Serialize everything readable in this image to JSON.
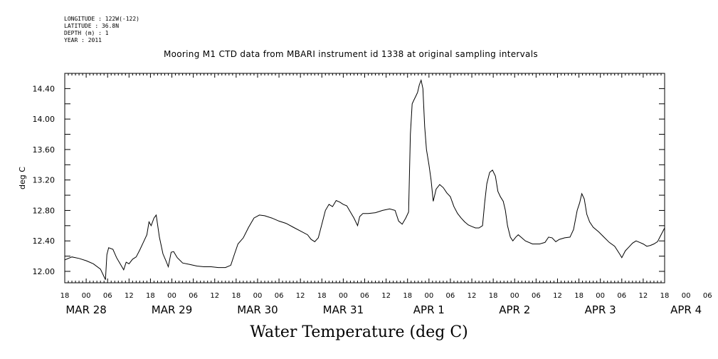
{
  "header": {
    "longitude": "LONGITUDE : 122W(-122)",
    "latitude": "LATITUDE : 36.8N",
    "depth": "DEPTH (m) : 1",
    "year": "YEAR : 2011"
  },
  "chart_data": {
    "type": "line",
    "title": "Mooring M1 CTD data from MBARI instrument id 1338 at original sampling intervals",
    "xlabel": "Water Temperature (deg C)",
    "ylabel": "deg C",
    "ylim": [
      11.85,
      14.6
    ],
    "yticks": [
      "12.00",
      "12.40",
      "12.80",
      "13.20",
      "13.60",
      "14.00",
      "14.40"
    ],
    "xlim": [
      0,
      168
    ],
    "x_unit": "hours since 2011-03-27 18:00",
    "x_hour_ticks": [
      "18",
      "00",
      "06",
      "12",
      "18",
      "00",
      "06",
      "12",
      "18",
      "00",
      "06",
      "12",
      "18",
      "00",
      "06",
      "12",
      "18",
      "00",
      "06",
      "12",
      "18",
      "00",
      "06",
      "12",
      "18",
      "00",
      "06",
      "12",
      "18",
      "00",
      "06",
      "12",
      "18"
    ],
    "x_day_labels": [
      "MAR 28",
      "MAR 29",
      "MAR 30",
      "MAR 31",
      "APR  1",
      "APR  2",
      "APR  3",
      "APR  4"
    ],
    "grid": false,
    "series": [
      {
        "name": "",
        "color": "#000000",
        "points": [
          [
            0,
            12.15
          ],
          [
            2,
            12.19
          ],
          [
            4,
            12.17
          ],
          [
            6,
            12.14
          ],
          [
            8,
            12.1
          ],
          [
            10,
            12.03
          ],
          [
            11,
            11.93
          ],
          [
            11.4,
            11.89
          ],
          [
            11.8,
            12.22
          ],
          [
            12.3,
            12.31
          ],
          [
            13.5,
            12.29
          ],
          [
            14.5,
            12.18
          ],
          [
            15.5,
            12.1
          ],
          [
            16.5,
            12.02
          ],
          [
            17.2,
            12.12
          ],
          [
            18,
            12.1
          ],
          [
            19,
            12.16
          ],
          [
            20,
            12.19
          ],
          [
            21,
            12.28
          ],
          [
            22,
            12.38
          ],
          [
            23,
            12.48
          ],
          [
            23.6,
            12.65
          ],
          [
            24.2,
            12.6
          ],
          [
            25,
            12.7
          ],
          [
            25.6,
            12.74
          ],
          [
            26.5,
            12.45
          ],
          [
            27.5,
            12.23
          ],
          [
            28.5,
            12.12
          ],
          [
            29,
            12.06
          ],
          [
            29.8,
            12.25
          ],
          [
            30.5,
            12.26
          ],
          [
            31.5,
            12.18
          ],
          [
            33,
            12.11
          ],
          [
            35,
            12.09
          ],
          [
            37,
            12.07
          ],
          [
            39,
            12.06
          ],
          [
            41,
            12.06
          ],
          [
            43,
            12.05
          ],
          [
            45,
            12.05
          ],
          [
            46.5,
            12.08
          ],
          [
            47.5,
            12.22
          ],
          [
            48.5,
            12.36
          ],
          [
            50,
            12.44
          ],
          [
            51.5,
            12.58
          ],
          [
            53,
            12.7
          ],
          [
            54.5,
            12.74
          ],
          [
            56,
            12.73
          ],
          [
            58,
            12.7
          ],
          [
            60,
            12.66
          ],
          [
            62,
            12.63
          ],
          [
            64,
            12.58
          ],
          [
            66,
            12.53
          ],
          [
            68,
            12.48
          ],
          [
            69,
            12.42
          ],
          [
            70,
            12.39
          ],
          [
            71,
            12.44
          ],
          [
            72,
            12.62
          ],
          [
            73,
            12.8
          ],
          [
            74,
            12.88
          ],
          [
            75,
            12.85
          ],
          [
            76,
            12.93
          ],
          [
            77,
            12.91
          ],
          [
            78,
            12.88
          ],
          [
            79,
            12.86
          ],
          [
            80,
            12.78
          ],
          [
            81,
            12.7
          ],
          [
            82,
            12.6
          ],
          [
            82.6,
            12.72
          ],
          [
            83.5,
            12.76
          ],
          [
            85,
            12.76
          ],
          [
            87,
            12.77
          ],
          [
            89,
            12.8
          ],
          [
            91,
            12.82
          ],
          [
            92.5,
            12.8
          ],
          [
            93.5,
            12.66
          ],
          [
            94.5,
            12.62
          ],
          [
            95.5,
            12.7
          ],
          [
            96.3,
            12.78
          ],
          [
            96.8,
            13.8
          ],
          [
            97.3,
            14.2
          ],
          [
            97.8,
            14.25
          ],
          [
            98.3,
            14.3
          ],
          [
            98.8,
            14.35
          ],
          [
            99.3,
            14.45
          ],
          [
            99.8,
            14.51
          ],
          [
            100.3,
            14.4
          ],
          [
            100.8,
            13.9
          ],
          [
            101.3,
            13.6
          ],
          [
            102,
            13.4
          ],
          [
            102.6,
            13.2
          ],
          [
            103.2,
            12.92
          ],
          [
            104,
            13.08
          ],
          [
            105,
            13.14
          ],
          [
            106,
            13.1
          ],
          [
            107,
            13.03
          ],
          [
            108,
            12.98
          ],
          [
            109,
            12.85
          ],
          [
            110,
            12.76
          ],
          [
            111,
            12.7
          ],
          [
            112,
            12.65
          ],
          [
            113,
            12.61
          ],
          [
            114,
            12.59
          ],
          [
            115,
            12.57
          ],
          [
            116,
            12.57
          ],
          [
            117,
            12.6
          ],
          [
            117.6,
            12.9
          ],
          [
            118.2,
            13.15
          ],
          [
            119,
            13.3
          ],
          [
            119.8,
            13.33
          ],
          [
            120.6,
            13.25
          ],
          [
            121.3,
            13.05
          ],
          [
            122,
            12.98
          ],
          [
            122.8,
            12.92
          ],
          [
            123.4,
            12.8
          ],
          [
            124,
            12.6
          ],
          [
            124.8,
            12.45
          ],
          [
            125.5,
            12.4
          ],
          [
            126.3,
            12.45
          ],
          [
            127,
            12.48
          ],
          [
            128,
            12.44
          ],
          [
            129,
            12.4
          ],
          [
            131,
            12.36
          ],
          [
            133,
            12.36
          ],
          [
            134.5,
            12.38
          ],
          [
            135.5,
            12.45
          ],
          [
            136.5,
            12.44
          ],
          [
            137.5,
            12.39
          ],
          [
            138.5,
            12.42
          ],
          [
            140,
            12.44
          ],
          [
            141.5,
            12.45
          ],
          [
            142.5,
            12.55
          ],
          [
            143.5,
            12.8
          ],
          [
            144.2,
            12.9
          ],
          [
            144.8,
            13.02
          ],
          [
            145.5,
            12.95
          ],
          [
            146.2,
            12.75
          ],
          [
            147,
            12.65
          ],
          [
            148,
            12.58
          ],
          [
            149.5,
            12.52
          ],
          [
            151,
            12.45
          ],
          [
            152.5,
            12.38
          ],
          [
            154,
            12.33
          ],
          [
            155.5,
            12.22
          ],
          [
            156,
            12.18
          ],
          [
            157,
            12.27
          ],
          [
            158,
            12.32
          ],
          [
            159,
            12.37
          ],
          [
            160,
            12.4
          ],
          [
            161,
            12.38
          ],
          [
            162,
            12.36
          ],
          [
            163,
            12.33
          ],
          [
            164,
            12.34
          ],
          [
            165,
            12.36
          ],
          [
            166,
            12.39
          ],
          [
            167,
            12.48
          ],
          [
            168,
            12.57
          ]
        ]
      }
    ]
  }
}
